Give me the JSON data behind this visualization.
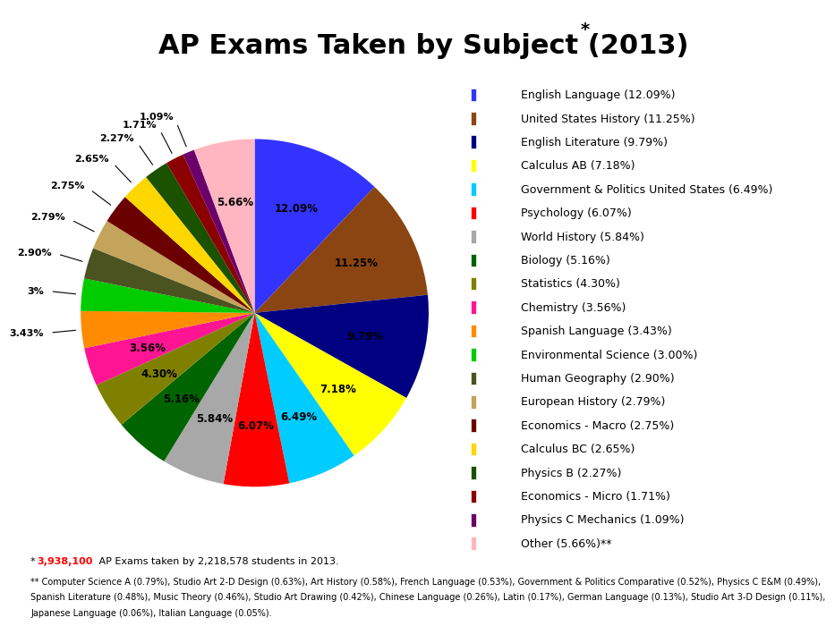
{
  "title": "AP Exams Taken by Subject (2013)",
  "title_star": "*",
  "labels": [
    "English Language (12.09%)",
    "United States History (11.25%)",
    "English Literature (9.79%)",
    "Calculus AB (7.18%)",
    "Government & Politics United States (6.49%)",
    "Psychology (6.07%)",
    "World History (5.84%)",
    "Biology (5.16%)",
    "Statistics (4.30%)",
    "Chemistry (3.56%)",
    "Spanish Language (3.43%)",
    "Environmental Science (3.00%)",
    "Human Geography (2.90%)",
    "European History (2.79%)",
    "Economics - Macro (2.75%)",
    "Calculus BC (2.65%)",
    "Physics B (2.27%)",
    "Economics - Micro (1.71%)",
    "Physics C Mechanics (1.09%)",
    "Other (5.66%)**"
  ],
  "pie_labels": [
    "12.09%",
    "11.25%",
    "9.79%",
    "7.18%",
    "6.49%",
    "6.07%",
    "5.84%",
    "5.16%",
    "4.30%",
    "3.56%",
    "3.43%",
    "3%",
    "2.90%",
    "2.79%",
    "2.75%",
    "2.65%",
    "2.27%",
    "1.71%",
    "1.09%",
    "5.66%"
  ],
  "values": [
    12.09,
    11.25,
    9.79,
    7.18,
    6.49,
    6.07,
    5.84,
    5.16,
    4.3,
    3.56,
    3.43,
    3.0,
    2.9,
    2.79,
    2.75,
    2.65,
    2.27,
    1.71,
    1.09,
    5.66
  ],
  "colors": [
    "#3333FF",
    "#8B4513",
    "#000080",
    "#FFFF00",
    "#00CCFF",
    "#FF0000",
    "#A8A8A8",
    "#006400",
    "#808000",
    "#FF1493",
    "#FF8C00",
    "#00CC00",
    "#4B5320",
    "#C4A35A",
    "#6B0000",
    "#FFD700",
    "#1A5200",
    "#8B0000",
    "#6B006B",
    "#FFB6C1"
  ],
  "inside_threshold": 2.5,
  "footnote_bold": "3,938,100",
  "footnote_rest": " AP Exams taken by 2,218,578 students in 2013.",
  "footnote2": "** Computer Science A (0.79%), Studio Art 2-D Design (0.63%), Art History (0.58%), French Language (0.53%), Government & Politics Comparative (0.52%), Physics C E&M (0.49%),",
  "footnote3": "Spanish Literature (0.48%), Music Theory (0.46%), Studio Art Drawing (0.42%), Chinese Language (0.26%), Latin (0.17%), German Language (0.13%), Studio Art 3-D Design (0.11%),",
  "footnote4": "Japanese Language (0.06%), Italian Language (0.05%).",
  "background_color": "#FFFFFF"
}
